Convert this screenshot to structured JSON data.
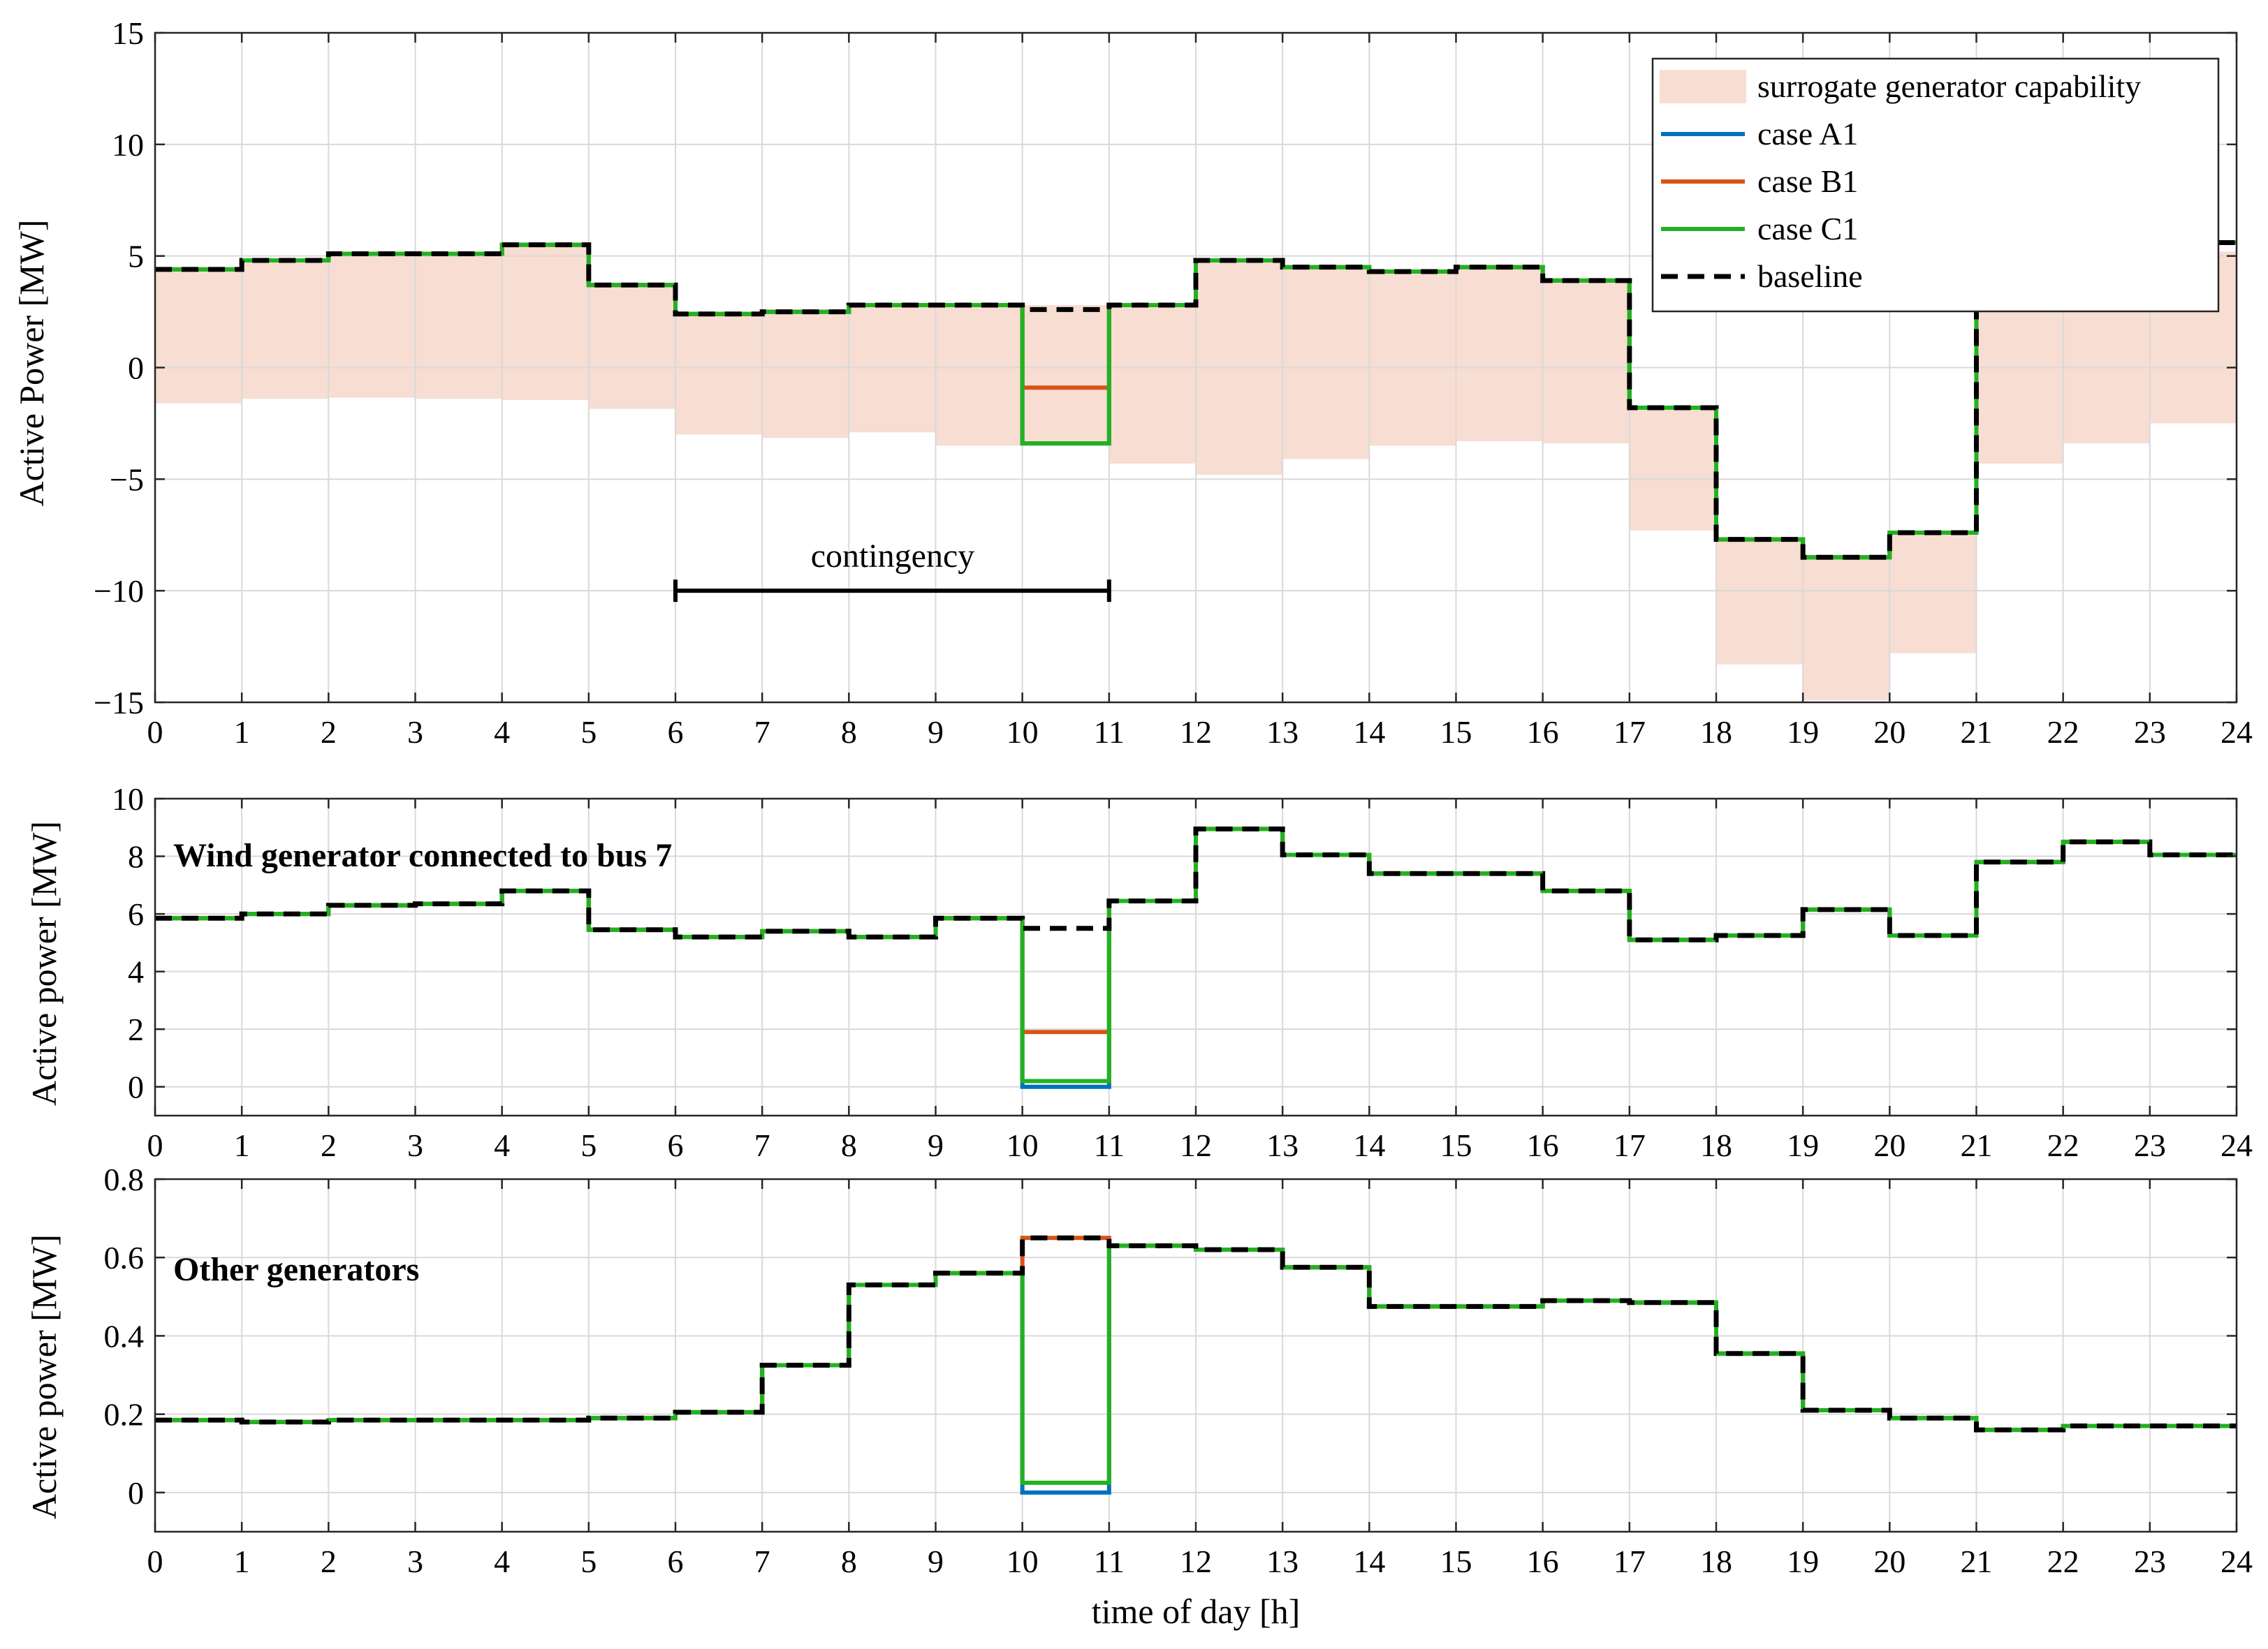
{
  "chart_data": [
    {
      "type": "line",
      "panel": "top",
      "title": "",
      "xlabel": "",
      "ylabel": "Active Power [MW]",
      "xlim": [
        0,
        24
      ],
      "ylim": [
        -15,
        15
      ],
      "xticks": [
        0,
        1,
        2,
        3,
        4,
        5,
        6,
        7,
        8,
        9,
        10,
        11,
        12,
        13,
        14,
        15,
        16,
        17,
        18,
        19,
        20,
        21,
        22,
        23,
        24
      ],
      "yticks": [
        -15,
        -10,
        -5,
        0,
        5,
        10,
        15
      ],
      "ytick_labels": [
        "−15",
        "−10",
        "−5",
        "0",
        "5",
        "10",
        "15"
      ],
      "grid": true,
      "legend_position": "top-right",
      "band": {
        "name": "surrogate generator capability",
        "color": "#f7ddd2",
        "upper": [
          4.4,
          4.8,
          5.1,
          5.1,
          5.5,
          3.7,
          2.4,
          2.5,
          2.8,
          2.8,
          2.8,
          2.8,
          4.8,
          4.5,
          4.3,
          4.5,
          3.9,
          -1.8,
          -7.7,
          -8.5,
          -7.4,
          5.2,
          5.2,
          5.2
        ],
        "lower": [
          -1.6,
          -1.4,
          -1.35,
          -1.4,
          -1.45,
          -1.85,
          -3.0,
          -3.15,
          -2.9,
          -3.5,
          -3.5,
          -4.3,
          -4.8,
          -4.1,
          -3.5,
          -3.3,
          -3.4,
          -7.3,
          -13.3,
          -14.9,
          -12.8,
          -4.3,
          -3.4,
          -2.5
        ]
      },
      "series": [
        {
          "name": "case A1",
          "color": "#0072bd",
          "values": [
            4.4,
            4.8,
            5.1,
            5.1,
            5.5,
            3.7,
            2.4,
            2.5,
            2.8,
            2.8,
            -3.4,
            2.8,
            4.8,
            4.5,
            4.3,
            4.5,
            3.9,
            -1.8,
            -7.7,
            -8.5,
            -7.4,
            5.6,
            5.6,
            5.6
          ]
        },
        {
          "name": "case B1",
          "color": "#d95319",
          "values": [
            4.4,
            4.8,
            5.1,
            5.1,
            5.5,
            3.7,
            2.4,
            2.5,
            2.8,
            2.8,
            -0.9,
            2.8,
            4.8,
            4.5,
            4.3,
            4.5,
            3.9,
            -1.8,
            -7.7,
            -8.5,
            -7.4,
            5.6,
            5.6,
            5.6
          ]
        },
        {
          "name": "case C1",
          "color": "#22b21f",
          "values": [
            4.4,
            4.8,
            5.1,
            5.1,
            5.5,
            3.7,
            2.4,
            2.5,
            2.8,
            2.8,
            -3.4,
            2.8,
            4.8,
            4.5,
            4.3,
            4.5,
            3.9,
            -1.8,
            -7.7,
            -8.5,
            -7.4,
            5.6,
            5.6,
            5.6
          ]
        },
        {
          "name": "baseline",
          "color": "#000000",
          "dashed": true,
          "values": [
            4.4,
            4.8,
            5.1,
            5.1,
            5.5,
            3.7,
            2.4,
            2.5,
            2.8,
            2.8,
            2.6,
            2.8,
            4.8,
            4.5,
            4.3,
            4.5,
            3.9,
            -1.8,
            -7.7,
            -8.5,
            -7.4,
            5.6,
            5.6,
            5.6
          ]
        }
      ],
      "annotations": [
        {
          "text": "contingency",
          "x_start": 6,
          "x_end": 11,
          "y": -10
        }
      ]
    },
    {
      "type": "line",
      "panel": "middle",
      "title": "Wind generator connected to bus 7",
      "xlabel": "",
      "ylabel": "Active power [MW]",
      "xlim": [
        0,
        24
      ],
      "ylim": [
        -1,
        10
      ],
      "xticks": [
        0,
        1,
        2,
        3,
        4,
        5,
        6,
        7,
        8,
        9,
        10,
        11,
        12,
        13,
        14,
        15,
        16,
        17,
        18,
        19,
        20,
        21,
        22,
        23,
        24
      ],
      "yticks": [
        0,
        2,
        4,
        6,
        8,
        10
      ],
      "ytick_labels": [
        "0",
        "2",
        "4",
        "6",
        "8",
        "10"
      ],
      "grid": true,
      "series": [
        {
          "name": "case A1",
          "color": "#0072bd",
          "values": [
            5.85,
            6.0,
            6.3,
            6.35,
            6.8,
            5.45,
            5.2,
            5.4,
            5.2,
            5.85,
            0.0,
            6.45,
            8.95,
            8.05,
            7.4,
            7.4,
            6.8,
            5.1,
            5.25,
            6.15,
            5.25,
            7.8,
            8.5,
            8.05
          ]
        },
        {
          "name": "case B1",
          "color": "#d95319",
          "values": [
            5.85,
            6.0,
            6.3,
            6.35,
            6.8,
            5.45,
            5.2,
            5.4,
            5.2,
            5.85,
            1.9,
            6.45,
            8.95,
            8.05,
            7.4,
            7.4,
            6.8,
            5.1,
            5.25,
            6.15,
            5.25,
            7.8,
            8.5,
            8.05
          ]
        },
        {
          "name": "case C1",
          "color": "#22b21f",
          "values": [
            5.85,
            6.0,
            6.3,
            6.35,
            6.8,
            5.45,
            5.2,
            5.4,
            5.2,
            5.85,
            0.2,
            6.45,
            8.95,
            8.05,
            7.4,
            7.4,
            6.8,
            5.1,
            5.25,
            6.15,
            5.25,
            7.8,
            8.5,
            8.05
          ]
        },
        {
          "name": "baseline",
          "color": "#000000",
          "dashed": true,
          "values": [
            5.85,
            6.0,
            6.3,
            6.35,
            6.8,
            5.45,
            5.2,
            5.4,
            5.2,
            5.85,
            5.5,
            6.45,
            8.95,
            8.05,
            7.4,
            7.4,
            6.8,
            5.1,
            5.25,
            6.15,
            5.25,
            7.8,
            8.5,
            8.05
          ]
        }
      ]
    },
    {
      "type": "line",
      "panel": "bottom",
      "title": "Other generators",
      "xlabel": "time of day [h]",
      "ylabel": "Active power [MW]",
      "xlim": [
        0,
        24
      ],
      "ylim": [
        -0.1,
        0.8
      ],
      "xticks": [
        0,
        1,
        2,
        3,
        4,
        5,
        6,
        7,
        8,
        9,
        10,
        11,
        12,
        13,
        14,
        15,
        16,
        17,
        18,
        19,
        20,
        21,
        22,
        23,
        24
      ],
      "yticks": [
        0,
        0.2,
        0.4,
        0.6,
        0.8
      ],
      "ytick_labels": [
        "0",
        "0.2",
        "0.4",
        "0.6",
        "0.8"
      ],
      "grid": true,
      "series": [
        {
          "name": "case A1",
          "color": "#0072bd",
          "values": [
            0.185,
            0.18,
            0.185,
            0.185,
            0.185,
            0.19,
            0.205,
            0.325,
            0.53,
            0.56,
            0.0,
            0.63,
            0.62,
            0.575,
            0.475,
            0.475,
            0.49,
            0.485,
            0.355,
            0.21,
            0.19,
            0.16,
            0.17,
            0.17
          ]
        },
        {
          "name": "case B1",
          "color": "#d95319",
          "values": [
            0.185,
            0.18,
            0.185,
            0.185,
            0.185,
            0.19,
            0.205,
            0.325,
            0.53,
            0.56,
            0.65,
            0.63,
            0.62,
            0.575,
            0.475,
            0.475,
            0.49,
            0.485,
            0.355,
            0.21,
            0.19,
            0.16,
            0.17,
            0.17
          ]
        },
        {
          "name": "case C1",
          "color": "#22b21f",
          "values": [
            0.185,
            0.18,
            0.185,
            0.185,
            0.185,
            0.19,
            0.205,
            0.325,
            0.53,
            0.56,
            0.025,
            0.63,
            0.62,
            0.575,
            0.475,
            0.475,
            0.49,
            0.485,
            0.355,
            0.21,
            0.19,
            0.16,
            0.17,
            0.17
          ]
        },
        {
          "name": "baseline",
          "color": "#000000",
          "dashed": true,
          "values": [
            0.185,
            0.18,
            0.185,
            0.185,
            0.185,
            0.19,
            0.205,
            0.325,
            0.53,
            0.56,
            0.65,
            0.63,
            0.62,
            0.575,
            0.475,
            0.475,
            0.49,
            0.485,
            0.355,
            0.21,
            0.19,
            0.16,
            0.17,
            0.17
          ]
        }
      ]
    }
  ]
}
